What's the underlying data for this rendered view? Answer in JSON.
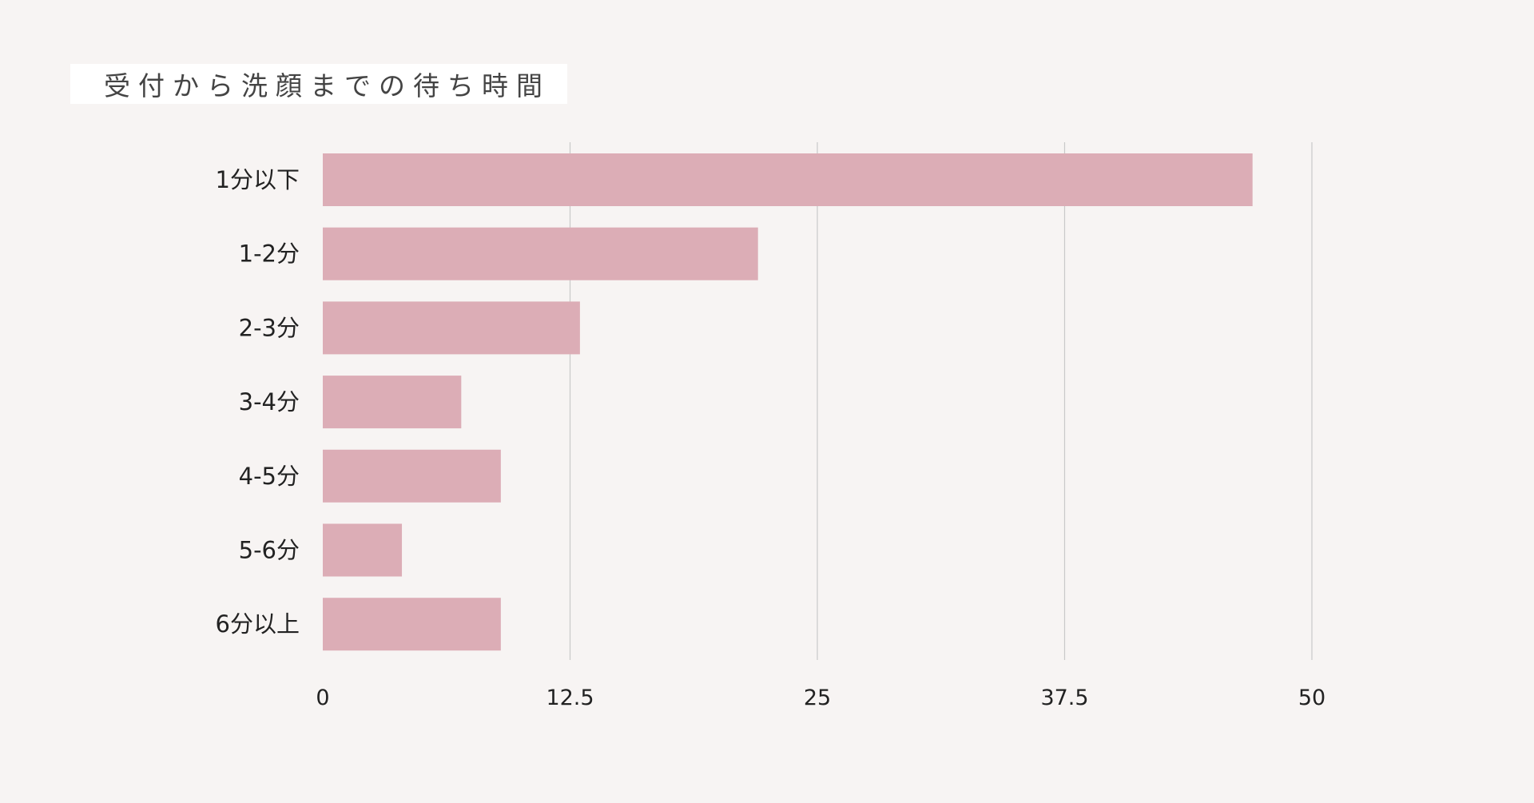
{
  "chart_data": {
    "type": "bar",
    "orientation": "horizontal",
    "title": "受付から洗顔までの待ち時間",
    "categories": [
      "1分以下",
      "1-2分",
      "2-3分",
      "3-4分",
      "4-5分",
      "5-6分",
      "6分以上"
    ],
    "values": [
      47,
      22,
      13,
      7,
      9,
      4,
      9
    ],
    "xlim": [
      0,
      50
    ],
    "xticks": [
      0,
      12.5,
      25,
      37.5,
      50
    ],
    "xtick_labels": [
      "0",
      "12.5",
      "25",
      "37.5",
      "50"
    ],
    "grid": "vertical",
    "bar_color": "#dcadb6",
    "grid_color": "#c9c9c9",
    "background_color": "#f7f4f3"
  }
}
